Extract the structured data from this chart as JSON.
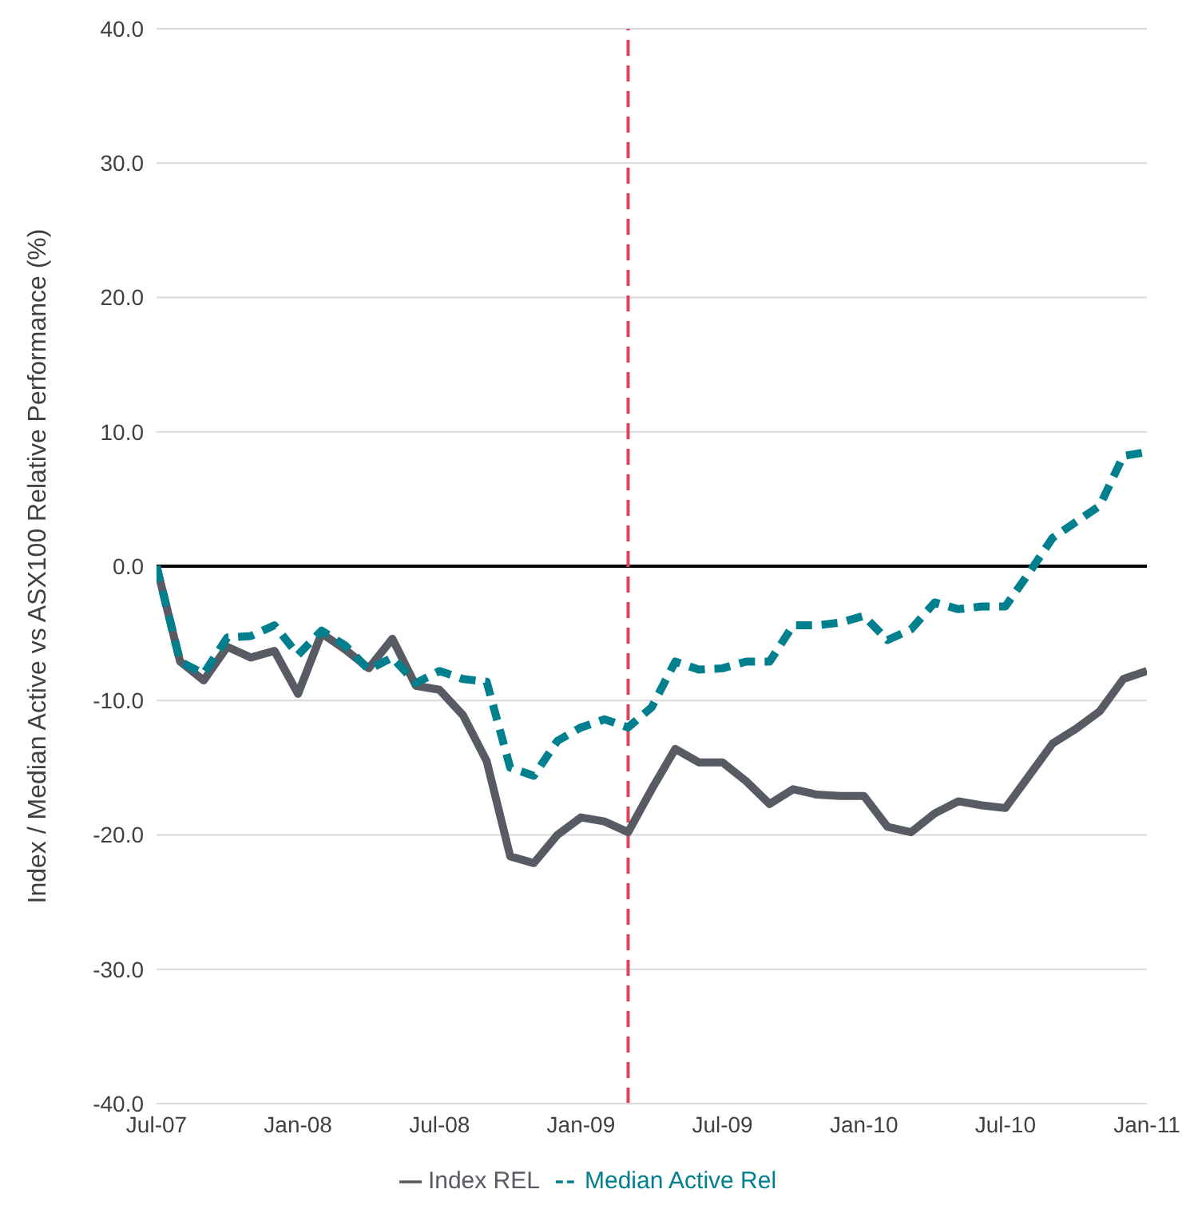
{
  "chart_data": {
    "type": "line",
    "ylabel": "Index / Median Active vs ASX100 Relative Performance (%)",
    "x": [
      "2007-07",
      "2007-08",
      "2007-09",
      "2007-10",
      "2007-11",
      "2007-12",
      "2008-01",
      "2008-02",
      "2008-03",
      "2008-04",
      "2008-05",
      "2008-06",
      "2008-07",
      "2008-08",
      "2008-09",
      "2008-10",
      "2008-11",
      "2008-12",
      "2009-01",
      "2009-02",
      "2009-03",
      "2009-04",
      "2009-05",
      "2009-06",
      "2009-07",
      "2009-08",
      "2009-09",
      "2009-10",
      "2009-11",
      "2009-12",
      "2010-01",
      "2010-02",
      "2010-03",
      "2010-04",
      "2010-05",
      "2010-06",
      "2010-07",
      "2010-08",
      "2010-09",
      "2010-10",
      "2010-11",
      "2010-12",
      "2011-01"
    ],
    "series": [
      {
        "name": "Index REL",
        "color": "#585b63",
        "line_style": "solid",
        "values": [
          0,
          -7.1,
          -8.5,
          -6.0,
          -6.8,
          -6.3,
          -9.5,
          -5.0,
          -6.2,
          -7.6,
          -5.4,
          -8.9,
          -9.2,
          -11.1,
          -14.5,
          -21.6,
          -22.1,
          -20.0,
          -18.7,
          -19.0,
          -19.8,
          -16.6,
          -13.6,
          -14.6,
          -14.6,
          -16.0,
          -17.7,
          -16.6,
          -17.0,
          -17.1,
          -17.1,
          -19.4,
          -19.8,
          -18.4,
          -17.5,
          -17.8,
          -18.0,
          -15.6,
          -13.2,
          -12.1,
          -10.8,
          -8.4,
          -7.8
        ]
      },
      {
        "name": "Median Active Rel",
        "color": "#00808f",
        "line_style": "dashed",
        "values": [
          0,
          -7.1,
          -8.0,
          -5.3,
          -5.2,
          -4.4,
          -6.6,
          -4.8,
          -5.9,
          -7.7,
          -6.8,
          -8.7,
          -7.8,
          -8.4,
          -8.6,
          -15.0,
          -15.6,
          -13.0,
          -12.0,
          -11.4,
          -12.0,
          -10.5,
          -7.1,
          -7.7,
          -7.6,
          -7.1,
          -7.1,
          -4.4,
          -4.4,
          -4.2,
          -3.7,
          -5.5,
          -4.7,
          -2.7,
          -3.2,
          -3.0,
          -3.0,
          -0.5,
          2.1,
          3.3,
          4.5,
          8.2,
          8.5
        ]
      }
    ],
    "xlim": [
      "2007-07",
      "2011-01"
    ],
    "xticks": [
      {
        "value": "2007-07",
        "label": "Jul-07"
      },
      {
        "value": "2008-01",
        "label": "Jan-08"
      },
      {
        "value": "2008-07",
        "label": "Jul-08"
      },
      {
        "value": "2009-01",
        "label": "Jan-09"
      },
      {
        "value": "2009-07",
        "label": "Jul-09"
      },
      {
        "value": "2010-01",
        "label": "Jan-10"
      },
      {
        "value": "2010-07",
        "label": "Jul-10"
      },
      {
        "value": "2011-01",
        "label": "Jan-11"
      }
    ],
    "ylim": [
      -40,
      40
    ],
    "yticks": [
      {
        "value": -40,
        "label": "-40.0"
      },
      {
        "value": -30,
        "label": "-30.0"
      },
      {
        "value": -20,
        "label": "-20.0"
      },
      {
        "value": -10,
        "label": "-10.0"
      },
      {
        "value": 0,
        "label": "0.0"
      },
      {
        "value": 10,
        "label": "10.0"
      },
      {
        "value": 20,
        "label": "20.0"
      },
      {
        "value": 30,
        "label": "30.0"
      },
      {
        "value": 40,
        "label": "40.0"
      }
    ],
    "ref_lines": [
      {
        "axis": "y",
        "value": 0,
        "color": "#000000",
        "line_style": "solid"
      },
      {
        "axis": "x",
        "value": "2009-03",
        "color": "#e0405a",
        "line_style": "dashed"
      }
    ],
    "grid": "y",
    "legend": "bottom",
    "marker": "none"
  }
}
